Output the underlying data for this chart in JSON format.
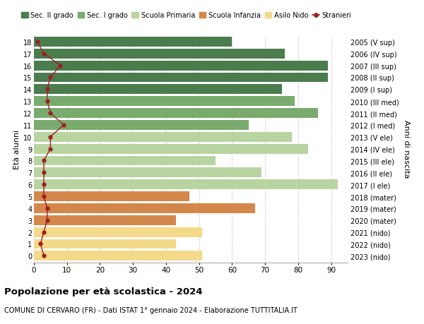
{
  "ages": [
    18,
    17,
    16,
    15,
    14,
    13,
    12,
    11,
    10,
    9,
    8,
    7,
    6,
    5,
    4,
    3,
    2,
    1,
    0
  ],
  "years": [
    "2005 (V sup)",
    "2006 (IV sup)",
    "2007 (III sup)",
    "2008 (II sup)",
    "2009 (I sup)",
    "2010 (III med)",
    "2011 (II med)",
    "2012 (I med)",
    "2013 (V ele)",
    "2014 (IV ele)",
    "2015 (III ele)",
    "2016 (II ele)",
    "2017 (I ele)",
    "2018 (mater)",
    "2019 (mater)",
    "2020 (mater)",
    "2021 (nido)",
    "2022 (nido)",
    "2023 (nido)"
  ],
  "bar_values": [
    60,
    76,
    89,
    89,
    75,
    79,
    86,
    65,
    78,
    83,
    55,
    69,
    92,
    47,
    67,
    43,
    51,
    43,
    51
  ],
  "bar_colors": [
    "#4a7c4e",
    "#4a7c4e",
    "#4a7c4e",
    "#4a7c4e",
    "#4a7c4e",
    "#7aab6e",
    "#7aab6e",
    "#7aab6e",
    "#b8d4a0",
    "#b8d4a0",
    "#b8d4a0",
    "#b8d4a0",
    "#b8d4a0",
    "#d4874a",
    "#d4874a",
    "#d4874a",
    "#f5d98a",
    "#f5d98a",
    "#f5d98a"
  ],
  "stranieri_values": [
    1,
    3,
    8,
    5,
    4,
    4,
    5,
    9,
    5,
    5,
    3,
    3,
    3,
    3,
    4,
    4,
    3,
    2,
    3
  ],
  "stranieri_color": "#a02020",
  "legend_labels": [
    "Sec. II grado",
    "Sec. I grado",
    "Scuola Primaria",
    "Scuola Infanzia",
    "Asilo Nido",
    "Stranieri"
  ],
  "legend_colors": [
    "#4a7c4e",
    "#7aab6e",
    "#b8d4a0",
    "#d4874a",
    "#f5d98a",
    "#a02020"
  ],
  "ylabel_left": "Età alunni",
  "ylabel_right": "Anni di nascita",
  "title": "Popolazione per età scolastica - 2024",
  "subtitle": "COMUNE DI CERVARO (FR) - Dati ISTAT 1° gennaio 2024 - Elaborazione TUTTITALIA.IT",
  "xlim": [
    0,
    95
  ],
  "xticks": [
    0,
    10,
    20,
    30,
    40,
    50,
    60,
    70,
    80,
    90
  ],
  "bg_color": "#ffffff",
  "bar_height": 0.82
}
